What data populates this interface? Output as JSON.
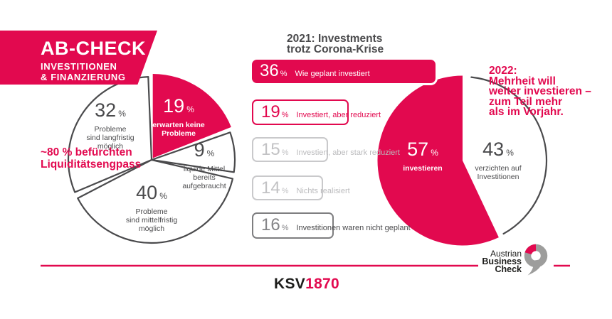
{
  "ui": {
    "percent_sign": "%"
  },
  "header": {
    "title": "AB-CHECK",
    "subtitle1": "INVESTITIONEN",
    "subtitle2": "& FINANZIERUNG"
  },
  "footer": {
    "ksv": "KSV",
    "year": "1870",
    "abc": {
      "line1": "Austrian",
      "line2": "Business",
      "line3": "Check"
    }
  },
  "colors": {
    "pink": "#E2094F",
    "dark": "#4A4A4C",
    "light_gray": "#C9C9CB",
    "mid_gray": "#7E7E80",
    "logo_gray": "#9D9D9C",
    "black": "#1D1D1B",
    "white": "#FFFFFF"
  },
  "chart_data": [
    {
      "type": "pie",
      "topic": "Liquiditaet / Probleme",
      "unit": "%",
      "slices": [
        {
          "value": 19,
          "label": "erwarten keine Probleme",
          "label_lines": [
            "erwarten keine",
            "Probleme"
          ],
          "highlight": true,
          "color": "#E2094F"
        },
        {
          "value": 9,
          "label": "liquide Mittel bereits aufgebraucht",
          "label_lines": [
            "liquide Mittel",
            "bereits",
            "aufgebraucht"
          ],
          "highlight": false,
          "color": "#FFFFFF"
        },
        {
          "value": 40,
          "label": "Probleme sind mittelfristig möglich",
          "label_lines": [
            "Probleme",
            "sind mittelfristig",
            "möglich"
          ],
          "highlight": false,
          "color": "#FFFFFF"
        },
        {
          "value": 32,
          "label": "Probleme sind langfristig möglich",
          "label_lines": [
            "Probleme",
            "sind langfristig",
            "möglich"
          ],
          "highlight": false,
          "color": "#FFFFFF"
        }
      ],
      "annotation": "~80 % befürchten Liquiditätsengpass",
      "annotation_lines": [
        "~80 % befürchten",
        "Liquiditätsengpass"
      ]
    },
    {
      "type": "bar",
      "title": "2021: Investments trotz Corona-Krise",
      "title_lines": [
        "2021: Investments",
        "trotz Corona-Krise"
      ],
      "categories": [
        "Wie geplant investiert",
        "Investiert, aber reduziert",
        "Investiert, aber stark reduziert",
        "Nichts realisiert",
        "Investitionen waren nicht geplant"
      ],
      "values": [
        36,
        19,
        15,
        14,
        16
      ],
      "styles": [
        "solid-pink",
        "outline-pink",
        "outline-lightgray",
        "outline-lightgray",
        "outline-darkgray"
      ],
      "unit": "%",
      "xlim": [
        0,
        36
      ],
      "legend": "none",
      "grid": "off"
    },
    {
      "type": "pie",
      "topic": "Investitionen 2022",
      "unit": "%",
      "slices": [
        {
          "value": 43,
          "label": "verzichten auf Investitionen",
          "label_lines": [
            "verzichten auf",
            "Investitionen"
          ],
          "highlight": false,
          "color": "#FFFFFF"
        },
        {
          "value": 57,
          "label": "investieren",
          "label_lines": [
            "investieren"
          ],
          "highlight": true,
          "color": "#E2094F"
        }
      ],
      "note": "2022: Mehrheit will weiter investieren – zum Teil mehr als im Vorjahr.",
      "note_lines": [
        "2022:",
        "Mehrheit will",
        "weiter investieren –",
        "zum Teil mehr",
        "als im Vorjahr."
      ]
    }
  ]
}
